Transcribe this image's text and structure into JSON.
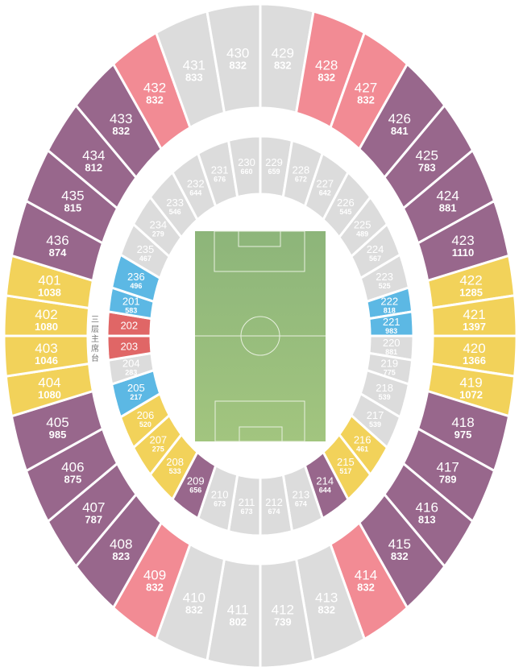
{
  "palette": {
    "purple": "#98678c",
    "pink": "#f28b94",
    "gray": "#dcdcdc",
    "yellow": "#f2d25a",
    "blue": "#5cb8e4",
    "red": "#e06666",
    "pitch_top": "#8db57a",
    "pitch_bottom": "#a2c57f"
  },
  "main_stand_label": "三层主席台",
  "upper_ring": [
    {
      "id": "429",
      "cap": "832",
      "color": "gray"
    },
    {
      "id": "428",
      "cap": "832",
      "color": "pink"
    },
    {
      "id": "427",
      "cap": "832",
      "color": "pink"
    },
    {
      "id": "426",
      "cap": "841",
      "color": "purple"
    },
    {
      "id": "425",
      "cap": "783",
      "color": "purple"
    },
    {
      "id": "424",
      "cap": "881",
      "color": "purple"
    },
    {
      "id": "423",
      "cap": "1110",
      "color": "purple"
    },
    {
      "id": "422",
      "cap": "1285",
      "color": "yellow"
    },
    {
      "id": "421",
      "cap": "1397",
      "color": "yellow"
    },
    {
      "id": "420",
      "cap": "1366",
      "color": "yellow"
    },
    {
      "id": "419",
      "cap": "1072",
      "color": "yellow"
    },
    {
      "id": "418",
      "cap": "975",
      "color": "purple"
    },
    {
      "id": "417",
      "cap": "789",
      "color": "purple"
    },
    {
      "id": "416",
      "cap": "813",
      "color": "purple"
    },
    {
      "id": "415",
      "cap": "832",
      "color": "purple"
    },
    {
      "id": "414",
      "cap": "832",
      "color": "pink"
    },
    {
      "id": "413",
      "cap": "832",
      "color": "gray"
    },
    {
      "id": "412",
      "cap": "739",
      "color": "gray"
    },
    {
      "id": "411",
      "cap": "802",
      "color": "gray"
    },
    {
      "id": "410",
      "cap": "832",
      "color": "gray"
    },
    {
      "id": "409",
      "cap": "832",
      "color": "pink"
    },
    {
      "id": "408",
      "cap": "823",
      "color": "purple"
    },
    {
      "id": "407",
      "cap": "787",
      "color": "purple"
    },
    {
      "id": "406",
      "cap": "875",
      "color": "purple"
    },
    {
      "id": "405",
      "cap": "985",
      "color": "purple"
    },
    {
      "id": "404",
      "cap": "1080",
      "color": "yellow"
    },
    {
      "id": "403",
      "cap": "1046",
      "color": "yellow"
    },
    {
      "id": "402",
      "cap": "1080",
      "color": "yellow"
    },
    {
      "id": "401",
      "cap": "1038",
      "color": "yellow"
    },
    {
      "id": "436",
      "cap": "874",
      "color": "purple"
    },
    {
      "id": "435",
      "cap": "815",
      "color": "purple"
    },
    {
      "id": "434",
      "cap": "812",
      "color": "purple"
    },
    {
      "id": "433",
      "cap": "832",
      "color": "purple"
    },
    {
      "id": "432",
      "cap": "832",
      "color": "pink"
    },
    {
      "id": "431",
      "cap": "833",
      "color": "gray"
    },
    {
      "id": "430",
      "cap": "832",
      "color": "gray"
    }
  ],
  "lower_ring": [
    {
      "id": "229",
      "cap": "659",
      "color": "gray"
    },
    {
      "id": "228",
      "cap": "672",
      "color": "gray"
    },
    {
      "id": "227",
      "cap": "642",
      "color": "gray"
    },
    {
      "id": "226",
      "cap": "545",
      "color": "gray"
    },
    {
      "id": "225",
      "cap": "489",
      "color": "gray"
    },
    {
      "id": "224",
      "cap": "567",
      "color": "gray"
    },
    {
      "id": "223",
      "cap": "525",
      "color": "gray"
    },
    {
      "id": "222",
      "cap": "818",
      "color": "blue"
    },
    {
      "id": "221",
      "cap": "983",
      "color": "blue"
    },
    {
      "id": "220",
      "cap": "881",
      "color": "gray"
    },
    {
      "id": "219",
      "cap": "775",
      "color": "gray"
    },
    {
      "id": "218",
      "cap": "539",
      "color": "gray"
    },
    {
      "id": "217",
      "cap": "539",
      "color": "gray"
    },
    {
      "id": "216",
      "cap": "461",
      "color": "yellow"
    },
    {
      "id": "215",
      "cap": "517",
      "color": "yellow"
    },
    {
      "id": "214",
      "cap": "644",
      "color": "purple"
    },
    {
      "id": "213",
      "cap": "674",
      "color": "gray"
    },
    {
      "id": "212",
      "cap": "674",
      "color": "gray"
    },
    {
      "id": "211",
      "cap": "673",
      "color": "gray"
    },
    {
      "id": "210",
      "cap": "673",
      "color": "gray"
    },
    {
      "id": "209",
      "cap": "656",
      "color": "purple"
    },
    {
      "id": "208",
      "cap": "533",
      "color": "yellow"
    },
    {
      "id": "207",
      "cap": "275",
      "color": "yellow"
    },
    {
      "id": "206",
      "cap": "520",
      "color": "yellow"
    },
    {
      "id": "205",
      "cap": "217",
      "color": "blue"
    },
    {
      "id": "204",
      "cap": "283",
      "color": "gray"
    },
    {
      "id": "203",
      "cap": "",
      "color": "red"
    },
    {
      "id": "202",
      "cap": "",
      "color": "red"
    },
    {
      "id": "201",
      "cap": "583",
      "color": "blue"
    },
    {
      "id": "236",
      "cap": "496",
      "color": "blue"
    },
    {
      "id": "235",
      "cap": "467",
      "color": "gray"
    },
    {
      "id": "234",
      "cap": "279",
      "color": "gray"
    },
    {
      "id": "233",
      "cap": "546",
      "color": "gray"
    },
    {
      "id": "232",
      "cap": "644",
      "color": "gray"
    },
    {
      "id": "231",
      "cap": "676",
      "color": "gray"
    },
    {
      "id": "230",
      "cap": "660",
      "color": "gray"
    }
  ]
}
